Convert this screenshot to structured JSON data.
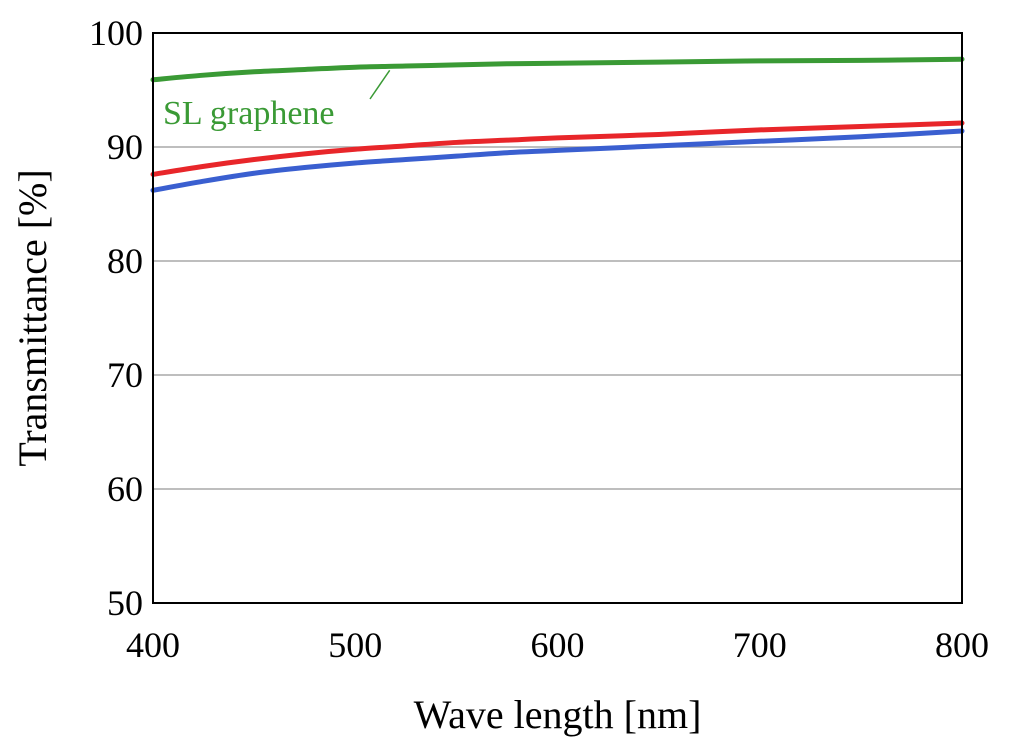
{
  "chart_data": {
    "type": "line",
    "title": "",
    "xlabel": "Wave length [nm]",
    "ylabel": "Transmittance [%]",
    "xlim": [
      400,
      800
    ],
    "ylim": [
      50,
      100
    ],
    "x_ticks": [
      400,
      500,
      600,
      700,
      800
    ],
    "y_ticks": [
      50,
      60,
      70,
      80,
      90,
      100
    ],
    "grid": "horizontal",
    "legend": "none",
    "series": [
      {
        "name": "SL graphene",
        "color": "#3a9a35",
        "x": [
          400,
          425,
          450,
          475,
          500,
          525,
          550,
          575,
          600,
          650,
          700,
          750,
          800
        ],
        "y": [
          95.9,
          96.3,
          96.6,
          96.8,
          97.0,
          97.1,
          97.2,
          97.3,
          97.35,
          97.45,
          97.55,
          97.6,
          97.7
        ]
      },
      {
        "color": "#e8262a",
        "x": [
          400,
          425,
          450,
          475,
          500,
          525,
          550,
          575,
          600,
          650,
          700,
          750,
          800
        ],
        "y": [
          87.6,
          88.3,
          88.9,
          89.4,
          89.8,
          90.1,
          90.4,
          90.6,
          90.8,
          91.1,
          91.5,
          91.8,
          92.1
        ]
      },
      {
        "color": "#3a5fd0",
        "x": [
          400,
          425,
          450,
          475,
          500,
          525,
          550,
          575,
          600,
          650,
          700,
          750,
          800
        ],
        "y": [
          86.2,
          87.0,
          87.7,
          88.2,
          88.6,
          88.9,
          89.2,
          89.5,
          89.7,
          90.1,
          90.5,
          90.9,
          91.4
        ]
      }
    ],
    "annotations": [
      {
        "text": "SL graphene",
        "series": "SL graphene",
        "color": "#3a9a35"
      }
    ]
  }
}
